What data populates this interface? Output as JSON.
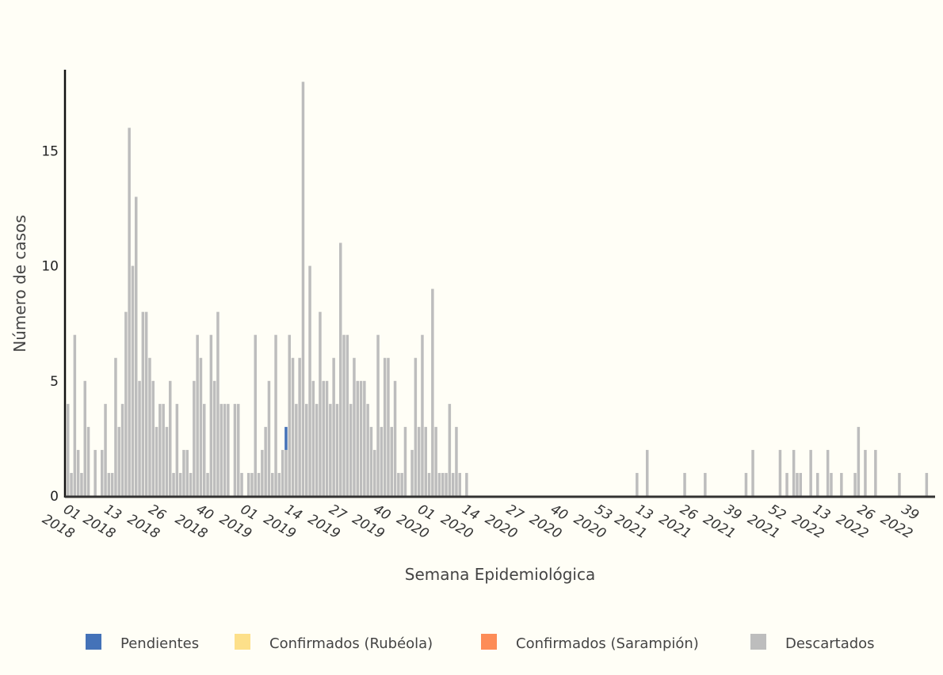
{
  "chart_data": {
    "type": "bar",
    "stacked": true,
    "xlabel": "Semana Epidemiológica",
    "ylabel": "Número de casos",
    "ylim": [
      0,
      18.8
    ],
    "y_ticks": [
      0,
      5,
      10,
      15
    ],
    "legend_position": "bottom",
    "grid": false,
    "x_tick_labels": [
      {
        "week": "01",
        "year": "2018",
        "index": 0
      },
      {
        "week": "13",
        "year": "2018",
        "index": 12
      },
      {
        "week": "26",
        "year": "2018",
        "index": 25
      },
      {
        "week": "40",
        "year": "2018",
        "index": 39
      },
      {
        "week": "01",
        "year": "2019",
        "index": 52
      },
      {
        "week": "14",
        "year": "2019",
        "index": 65
      },
      {
        "week": "27",
        "year": "2019",
        "index": 78
      },
      {
        "week": "40",
        "year": "2019",
        "index": 91
      },
      {
        "week": "01",
        "year": "2020",
        "index": 104
      },
      {
        "week": "14",
        "year": "2020",
        "index": 117
      },
      {
        "week": "27",
        "year": "2020",
        "index": 130
      },
      {
        "week": "40",
        "year": "2020",
        "index": 143
      },
      {
        "week": "53",
        "year": "2020",
        "index": 156
      },
      {
        "week": "13",
        "year": "2021",
        "index": 168
      },
      {
        "week": "26",
        "year": "2021",
        "index": 181
      },
      {
        "week": "39",
        "year": "2021",
        "index": 194
      },
      {
        "week": "52",
        "year": "2021",
        "index": 207
      },
      {
        "week": "13",
        "year": "2022",
        "index": 220
      },
      {
        "week": "26",
        "year": "2022",
        "index": 233
      },
      {
        "week": "39",
        "year": "2022",
        "index": 246
      }
    ],
    "n_weeks": 254,
    "series": [
      {
        "name": "Pendientes",
        "color": "#4472b8",
        "points": [
          [
            64,
            1
          ]
        ]
      },
      {
        "name": "Confirmados (Rubéola)",
        "color": "#fde08a",
        "points": []
      },
      {
        "name": "Confirmados (Sarampión)",
        "color": "#fd8c57",
        "points": []
      },
      {
        "name": "Descartados",
        "color": "#bdbdbd",
        "points": [
          [
            0,
            4
          ],
          [
            1,
            1
          ],
          [
            2,
            7
          ],
          [
            3,
            2
          ],
          [
            4,
            1
          ],
          [
            5,
            5
          ],
          [
            6,
            3
          ],
          [
            7,
            0
          ],
          [
            8,
            2
          ],
          [
            9,
            0
          ],
          [
            10,
            2
          ],
          [
            11,
            4
          ],
          [
            12,
            1
          ],
          [
            13,
            1
          ],
          [
            14,
            6
          ],
          [
            15,
            3
          ],
          [
            16,
            4
          ],
          [
            17,
            8
          ],
          [
            18,
            16
          ],
          [
            19,
            10
          ],
          [
            20,
            13
          ],
          [
            21,
            5
          ],
          [
            22,
            8
          ],
          [
            23,
            8
          ],
          [
            24,
            6
          ],
          [
            25,
            5
          ],
          [
            26,
            3
          ],
          [
            27,
            4
          ],
          [
            28,
            4
          ],
          [
            29,
            3
          ],
          [
            30,
            5
          ],
          [
            31,
            1
          ],
          [
            32,
            4
          ],
          [
            33,
            1
          ],
          [
            34,
            2
          ],
          [
            35,
            2
          ],
          [
            36,
            1
          ],
          [
            37,
            5
          ],
          [
            38,
            7
          ],
          [
            39,
            6
          ],
          [
            40,
            4
          ],
          [
            41,
            1
          ],
          [
            42,
            7
          ],
          [
            43,
            5
          ],
          [
            44,
            8
          ],
          [
            45,
            4
          ],
          [
            46,
            4
          ],
          [
            47,
            4
          ],
          [
            48,
            0
          ],
          [
            49,
            4
          ],
          [
            50,
            4
          ],
          [
            51,
            1
          ],
          [
            52,
            0
          ],
          [
            53,
            1
          ],
          [
            54,
            1
          ],
          [
            55,
            7
          ],
          [
            56,
            1
          ],
          [
            57,
            2
          ],
          [
            58,
            3
          ],
          [
            59,
            5
          ],
          [
            60,
            1
          ],
          [
            61,
            7
          ],
          [
            62,
            1
          ],
          [
            63,
            2
          ],
          [
            64,
            2
          ],
          [
            65,
            7
          ],
          [
            66,
            6
          ],
          [
            67,
            4
          ],
          [
            68,
            6
          ],
          [
            69,
            18
          ],
          [
            70,
            4
          ],
          [
            71,
            10
          ],
          [
            72,
            5
          ],
          [
            73,
            4
          ],
          [
            74,
            8
          ],
          [
            75,
            5
          ],
          [
            76,
            5
          ],
          [
            77,
            4
          ],
          [
            78,
            6
          ],
          [
            79,
            4
          ],
          [
            80,
            11
          ],
          [
            81,
            7
          ],
          [
            82,
            7
          ],
          [
            83,
            4
          ],
          [
            84,
            6
          ],
          [
            85,
            5
          ],
          [
            86,
            5
          ],
          [
            87,
            5
          ],
          [
            88,
            4
          ],
          [
            89,
            3
          ],
          [
            90,
            2
          ],
          [
            91,
            7
          ],
          [
            92,
            3
          ],
          [
            93,
            6
          ],
          [
            94,
            6
          ],
          [
            95,
            3
          ],
          [
            96,
            5
          ],
          [
            97,
            1
          ],
          [
            98,
            1
          ],
          [
            99,
            3
          ],
          [
            100,
            0
          ],
          [
            101,
            2
          ],
          [
            102,
            6
          ],
          [
            103,
            3
          ],
          [
            104,
            7
          ],
          [
            105,
            3
          ],
          [
            106,
            1
          ],
          [
            107,
            9
          ],
          [
            108,
            3
          ],
          [
            109,
            1
          ],
          [
            110,
            1
          ],
          [
            111,
            1
          ],
          [
            112,
            4
          ],
          [
            113,
            1
          ],
          [
            114,
            3
          ],
          [
            115,
            1
          ],
          [
            116,
            0
          ],
          [
            117,
            1
          ],
          [
            167,
            1
          ],
          [
            170,
            2
          ],
          [
            181,
            1
          ],
          [
            187,
            1
          ],
          [
            199,
            1
          ],
          [
            201,
            2
          ],
          [
            209,
            2
          ],
          [
            211,
            1
          ],
          [
            213,
            2
          ],
          [
            214,
            1
          ],
          [
            215,
            1
          ],
          [
            218,
            2
          ],
          [
            220,
            1
          ],
          [
            223,
            2
          ],
          [
            224,
            1
          ],
          [
            227,
            1
          ],
          [
            231,
            1
          ],
          [
            232,
            3
          ],
          [
            234,
            2
          ],
          [
            237,
            2
          ],
          [
            244,
            1
          ],
          [
            252,
            1
          ]
        ]
      }
    ]
  }
}
